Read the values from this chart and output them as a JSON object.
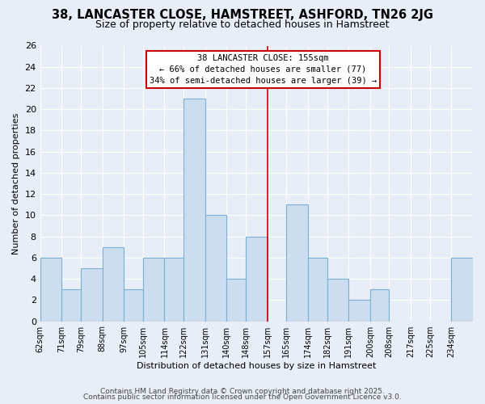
{
  "title": "38, LANCASTER CLOSE, HAMSTREET, ASHFORD, TN26 2JG",
  "subtitle": "Size of property relative to detached houses in Hamstreet",
  "xlabel": "Distribution of detached houses by size in Hamstreet",
  "ylabel": "Number of detached properties",
  "bin_labels": [
    "62sqm",
    "71sqm",
    "79sqm",
    "88sqm",
    "97sqm",
    "105sqm",
    "114sqm",
    "122sqm",
    "131sqm",
    "140sqm",
    "148sqm",
    "157sqm",
    "165sqm",
    "174sqm",
    "182sqm",
    "191sqm",
    "200sqm",
    "208sqm",
    "217sqm",
    "225sqm",
    "234sqm"
  ],
  "bar_heights": [
    6,
    3,
    5,
    7,
    3,
    6,
    6,
    21,
    10,
    4,
    8,
    0,
    11,
    6,
    4,
    2,
    3,
    0,
    0,
    0,
    6
  ],
  "bar_color": "#ccddf0",
  "bar_edge_color": "#7aafd4",
  "vline_color": "#cc0000",
  "bin_edges": [
    62,
    71,
    79,
    88,
    97,
    105,
    114,
    122,
    131,
    140,
    148,
    157,
    165,
    174,
    182,
    191,
    200,
    208,
    217,
    225,
    234,
    243
  ],
  "vline_x": 157,
  "annotation_title": "38 LANCASTER CLOSE: 155sqm",
  "annotation_line1": "← 66% of detached houses are smaller (77)",
  "annotation_line2": "34% of semi-detached houses are larger (39) →",
  "annotation_box_facecolor": "#ffffff",
  "annotation_box_edgecolor": "#cc0000",
  "ylim": [
    0,
    26
  ],
  "yticks": [
    0,
    2,
    4,
    6,
    8,
    10,
    12,
    14,
    16,
    18,
    20,
    22,
    24,
    26
  ],
  "footer1": "Contains HM Land Registry data © Crown copyright and database right 2025.",
  "footer2": "Contains public sector information licensed under the Open Government Licence v3.0.",
  "bg_color": "#e8eef8",
  "grid_color": "#ffffff",
  "title_fontsize": 10.5,
  "subtitle_fontsize": 9,
  "axis_label_fontsize": 8,
  "tick_fontsize": 8,
  "xtick_fontsize": 7,
  "annotation_fontsize": 7.5,
  "footer_fontsize": 6.5
}
